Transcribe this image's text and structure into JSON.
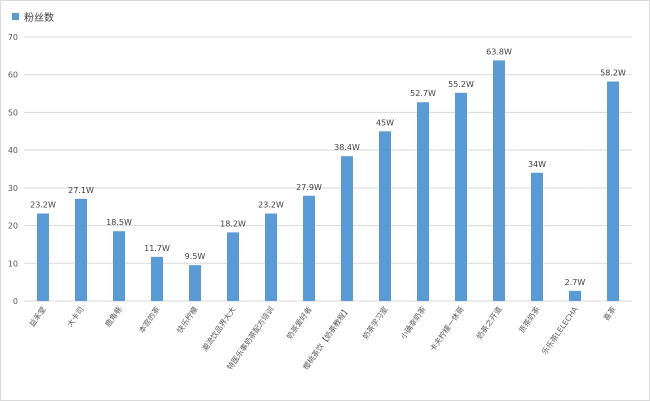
{
  "chart_data": {
    "type": "bar",
    "legend": {
      "entries": [
        "粉丝数"
      ],
      "position": "top-left"
    },
    "categories": [
      "益禾堂",
      "大卡司",
      "鹿角巷",
      "本宫的茶",
      "快乐柠檬",
      "潮流饮品界大大",
      "特医乐事奶茶配方培训",
      "奶茶爱好者",
      "樱桃茶饮【奶茶教程】",
      "奶茶学习室",
      "小确幸奶茶",
      "卡夫柠檬一休哥",
      "奶茶之开道",
      "贡茶奶茶",
      "乐乐茶LELECHA",
      "喜茶"
    ],
    "series": [
      {
        "name": "粉丝数",
        "color": "#5b9bd5",
        "values": [
          23.2,
          27.1,
          18.5,
          11.7,
          9.5,
          18.2,
          23.2,
          27.9,
          38.4,
          45,
          52.7,
          55.2,
          63.8,
          34,
          2.7,
          58.2
        ],
        "data_labels": [
          "23.2W",
          "27.1W",
          "18.5W",
          "11.7W",
          "9.5W",
          "18.2W",
          "23.2W",
          "27.9W",
          "38.4W",
          "45W",
          "52.7W",
          "55.2W",
          "63.8W",
          "34W",
          "2.7W",
          "58.2W"
        ]
      }
    ],
    "ylim": [
      0,
      70
    ],
    "yticks": [
      0,
      10,
      20,
      30,
      40,
      50,
      60,
      70
    ],
    "grid": true,
    "colors": {
      "bar": "#5b9bd5",
      "grid": "#d9d9d9",
      "text": "#595959"
    }
  }
}
